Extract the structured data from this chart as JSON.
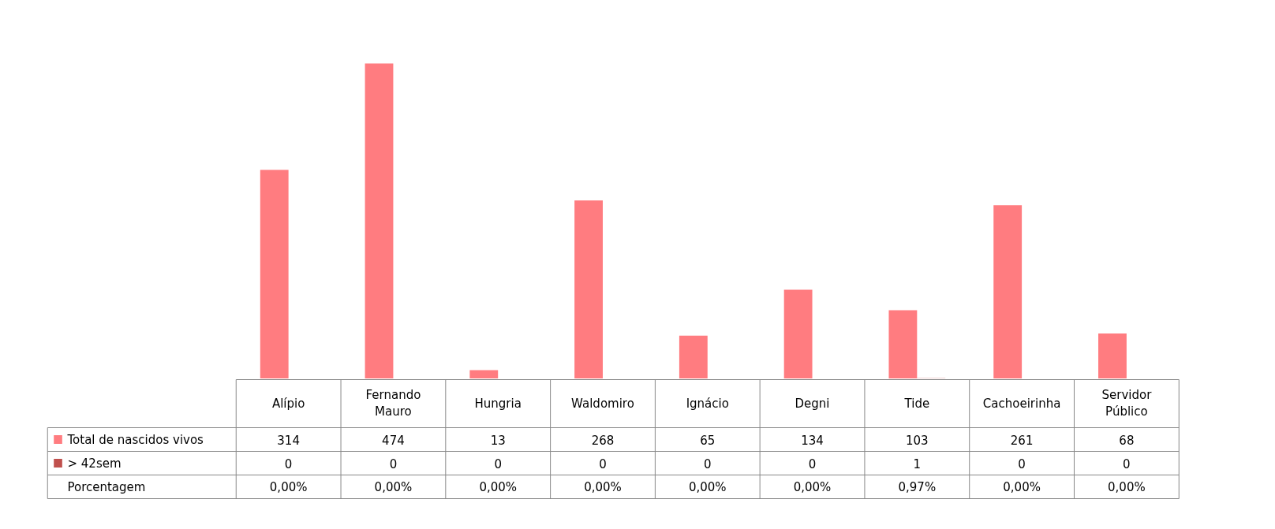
{
  "chart_data": {
    "type": "bar",
    "categories": [
      "Alípio",
      "Fernando Mauro",
      "Hungria",
      "Waldomiro",
      "Ignácio",
      "Degni",
      "Tide",
      "Cachoeirinha",
      "Servidor Público"
    ],
    "series": [
      {
        "name": "Total de nascidos vivos",
        "color": "#ff7c80",
        "values": [
          314,
          474,
          13,
          268,
          65,
          134,
          103,
          261,
          68
        ]
      },
      {
        "name": "> 42sem",
        "color": "#c0504d",
        "values": [
          0,
          0,
          0,
          0,
          0,
          0,
          1,
          0,
          0
        ]
      },
      {
        "name": "Porcentagem",
        "values": [
          0,
          0,
          0,
          0,
          0,
          0,
          0.97,
          0,
          0
        ],
        "value_labels": [
          "0,00%",
          "0,00%",
          "0,00%",
          "0,00%",
          "0,00%",
          "0,00%",
          "0,97%",
          "0,00%",
          "0,00%"
        ]
      }
    ],
    "data_labels": true,
    "legend": "bottom",
    "grid": false
  }
}
